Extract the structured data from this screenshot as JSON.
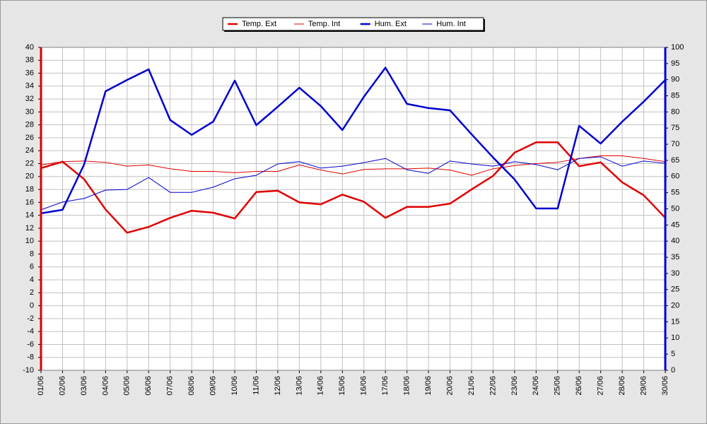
{
  "chart_data": {
    "type": "line",
    "categories": [
      "01/06",
      "02/06",
      "03/06",
      "04/06",
      "05/06",
      "06/06",
      "07/06",
      "08/06",
      "09/06",
      "10/06",
      "11/06",
      "12/06",
      "13/06",
      "14/06",
      "15/06",
      "16/06",
      "17/06",
      "18/06",
      "19/06",
      "20/06",
      "21/06",
      "22/06",
      "23/06",
      "24/06",
      "25/06",
      "26/06",
      "27/06",
      "28/06",
      "29/06",
      "30/06"
    ],
    "series": [
      {
        "name": "Temp. Ext",
        "color": "#e00000",
        "line_width": 2.5,
        "values": [
          21.3,
          22.3,
          19.6,
          14.9,
          11.3,
          12.2,
          13.6,
          14.7,
          14.4,
          13.5,
          17.6,
          17.8,
          16.0,
          15.7,
          17.2,
          16.1,
          13.6,
          15.3,
          15.3,
          15.8,
          18.0,
          20.1,
          23.7,
          25.3,
          25.3,
          21.6,
          22.2,
          19.1,
          17.1,
          13.6
        ]
      },
      {
        "name": "Temp. Int",
        "color": "#e00000",
        "line_width": 1,
        "values": [
          21.8,
          22.3,
          22.4,
          22.2,
          21.6,
          21.8,
          21.2,
          20.8,
          20.8,
          20.6,
          20.8,
          20.8,
          21.8,
          21.0,
          20.4,
          21.1,
          21.2,
          21.2,
          21.3,
          21.0,
          20.2,
          21.2,
          21.7,
          22.0,
          22.2,
          22.8,
          23.2,
          23.2,
          22.8,
          22.3
        ]
      },
      {
        "name": "Hum. Ext",
        "color": "#0000d0",
        "line_width": 2.5,
        "axis": "y2",
        "values": [
          48.6,
          49.7,
          63.7,
          86.4,
          89.9,
          93.2,
          77.5,
          72.9,
          77.0,
          89.7,
          75.9,
          81.6,
          87.5,
          81.8,
          74.4,
          84.7,
          93.7,
          82.5,
          81.2,
          80.5,
          73.1,
          65.9,
          59.1,
          50.1,
          50.1,
          75.7,
          70.2,
          77.0,
          83.2,
          89.9
        ]
      },
      {
        "name": "Hum. Int",
        "color": "#0000d0",
        "line_width": 1,
        "axis": "y2",
        "values": [
          49.7,
          52.1,
          53.2,
          55.8,
          56.0,
          59.7,
          55.1,
          55.1,
          56.7,
          59.3,
          60.4,
          63.9,
          64.6,
          62.6,
          63.2,
          64.3,
          65.6,
          62.1,
          61.0,
          64.8,
          63.9,
          63.2,
          64.6,
          63.7,
          62.1,
          65.6,
          66.1,
          63.2,
          64.8,
          64.1
        ]
      }
    ],
    "ylim": [
      -10,
      40
    ],
    "yticks": [
      -10,
      -8,
      -6,
      -4,
      -2,
      0,
      2,
      4,
      6,
      8,
      10,
      12,
      14,
      16,
      18,
      20,
      22,
      24,
      26,
      28,
      30,
      32,
      34,
      36,
      38,
      40
    ],
    "y2lim": [
      0,
      100
    ],
    "y2ticks": [
      0,
      5,
      10,
      15,
      20,
      25,
      30,
      35,
      40,
      45,
      50,
      55,
      60,
      65,
      70,
      75,
      80,
      85,
      90,
      95,
      100
    ],
    "grid": true,
    "legend": "top"
  }
}
